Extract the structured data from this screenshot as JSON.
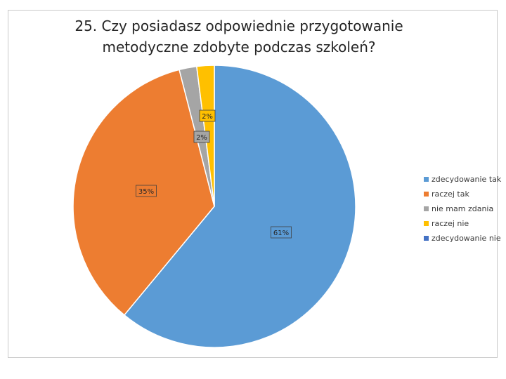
{
  "chart_data": {
    "type": "pie",
    "title": "25. Czy posiadasz odpowiednie przygotowanie\nmetodyczne zdobyte podczas szkoleń?",
    "categories": [
      "zdecydowanie tak",
      "raczej tak",
      "nie mam zdania",
      "raczej nie",
      "zdecydowanie nie"
    ],
    "values": [
      61,
      35,
      2,
      2,
      0
    ],
    "labels": [
      "61%",
      "35%",
      "2%",
      "2%",
      ""
    ],
    "colors": [
      "#5b9bd5",
      "#ed7d31",
      "#a5a5a5",
      "#ffc000",
      "#4472c4"
    ],
    "legend_position": "right"
  }
}
